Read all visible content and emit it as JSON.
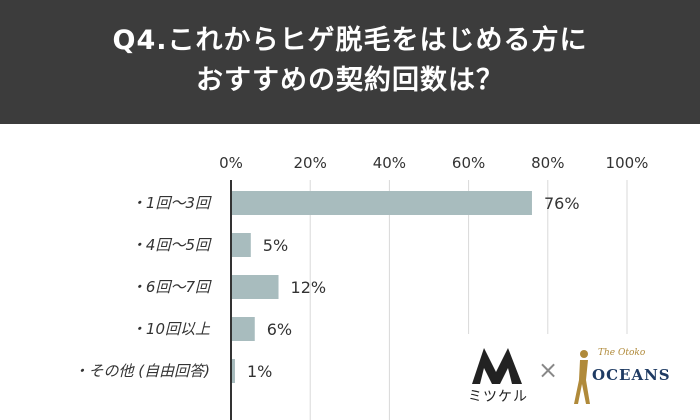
{
  "header": {
    "title_line1": "Q4.これからヒゲ脱毛をはじめる方に",
    "title_line2": "おすすめの契約回数は？"
  },
  "chart_data": {
    "type": "bar",
    "orientation": "horizontal",
    "categories": [
      "・1回〜3回",
      "・4回〜5回",
      "・6回〜7回",
      "・10回以上",
      "・その他 (自由回答)"
    ],
    "values": [
      76,
      5,
      12,
      6,
      1
    ],
    "value_labels": [
      "76%",
      "5%",
      "12%",
      "6%",
      "1%"
    ],
    "xlim": [
      0,
      100
    ],
    "xticks": [
      0,
      20,
      40,
      60,
      80,
      100
    ],
    "xtick_labels": [
      "0%",
      "20%",
      "40%",
      "60%",
      "80%",
      "100%"
    ],
    "grid": "vertical",
    "bar_color": "#a8bcbe"
  },
  "logos": {
    "mitsukeru_text": "ミツケル",
    "times": "×",
    "oceans_text": "OCEANS",
    "oceans_sub": "The Otoko"
  }
}
